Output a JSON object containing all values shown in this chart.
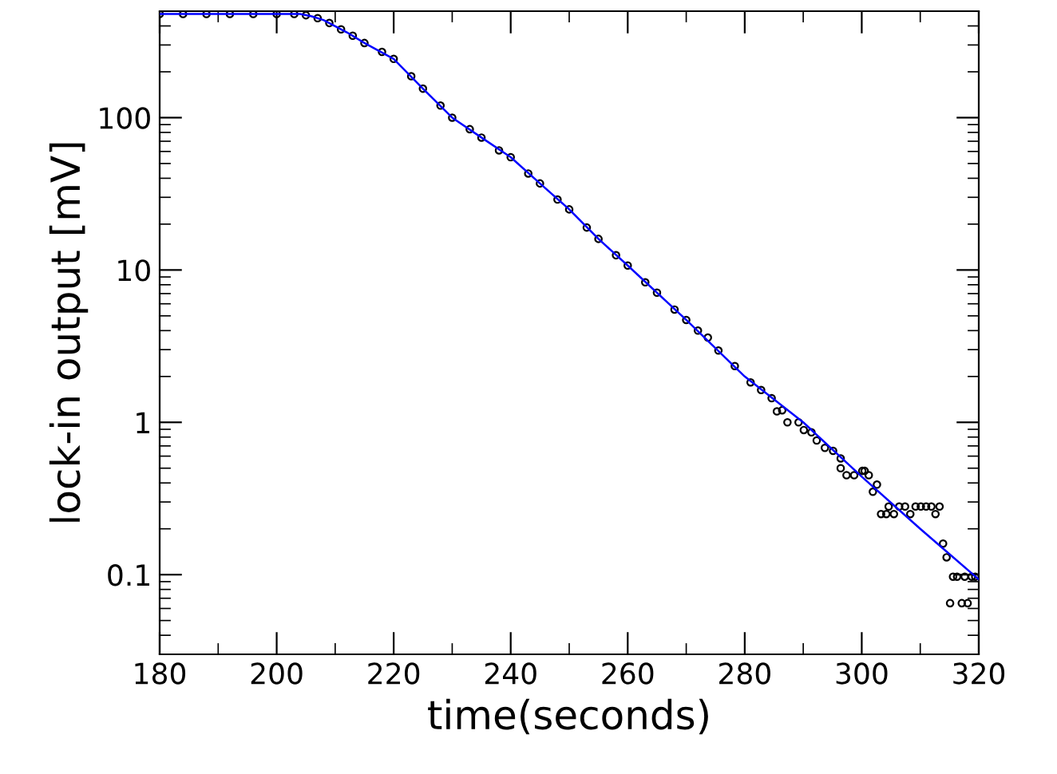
{
  "chart_data": {
    "type": "scatter",
    "xlabel": "time(seconds)",
    "ylabel": "lock-in output [mV]",
    "log": "y",
    "xlim": [
      180,
      320
    ],
    "xticks": [
      180,
      200,
      220,
      240,
      260,
      280,
      300,
      320
    ],
    "ylim": [
      0.03,
      500
    ],
    "yticks": [
      0.1,
      1,
      10,
      100
    ],
    "grid": false,
    "legend": false,
    "series": [
      {
        "marker": "circle",
        "color": "#000000",
        "x": [
          180,
          184,
          188,
          192,
          196,
          200,
          203,
          205,
          207,
          209,
          211,
          213,
          215,
          218,
          220,
          223,
          225,
          228,
          230,
          233,
          235,
          238,
          240,
          243,
          245,
          248,
          250,
          253,
          255,
          258,
          260,
          263,
          265,
          268,
          270,
          272,
          273.7,
          275.5,
          278.3,
          281,
          282.8,
          284.6,
          285.5,
          286.4,
          287.3,
          289.2,
          290.1,
          291.4,
          292.3,
          293.7,
          295.1,
          296.4,
          296.4,
          297.4,
          298.7,
          300.1,
          300.5,
          301.2,
          301.9,
          302.6,
          303.3,
          304.2,
          304.6,
          305.5,
          306.4,
          307.4,
          308.3,
          309.2,
          310.1,
          311.0,
          311.9,
          312.6,
          313.3,
          313.9,
          314.5,
          315.1,
          315.6,
          316.3,
          317.1,
          317.6,
          318.1,
          318.8,
          319.4
        ],
        "values": [
          479,
          479,
          479,
          479,
          479,
          479,
          479,
          470,
          450,
          418,
          380,
          345,
          309,
          270,
          243,
          187,
          155,
          120,
          100,
          84,
          74,
          61,
          55,
          43,
          37,
          29,
          25,
          19,
          16,
          12.5,
          10.7,
          8.3,
          7.1,
          5.5,
          4.7,
          4.0,
          3.6,
          2.96,
          2.34,
          1.83,
          1.63,
          1.44,
          1.18,
          1.2,
          1.0,
          1.0,
          0.89,
          0.86,
          0.76,
          0.68,
          0.65,
          0.58,
          0.5,
          0.45,
          0.45,
          0.48,
          0.48,
          0.45,
          0.35,
          0.39,
          0.25,
          0.25,
          0.28,
          0.25,
          0.28,
          0.28,
          0.25,
          0.28,
          0.28,
          0.28,
          0.28,
          0.25,
          0.28,
          0.16,
          0.13,
          0.065,
          0.097,
          0.097,
          0.065,
          0.097,
          0.065,
          0.097,
          0.097
        ]
      },
      {
        "type": "line",
        "line_style": "solid",
        "color": "#0000ff",
        "x": [
          180,
          204,
          206,
          208,
          210,
          212,
          215,
          220,
          225,
          230,
          235,
          240,
          245,
          250,
          255,
          260,
          270,
          280,
          290,
          300,
          310,
          320
        ],
        "values": [
          479,
          479,
          462,
          437,
          398,
          363,
          309,
          243,
          155,
          100,
          74,
          55,
          37,
          25,
          16,
          10.7,
          4.7,
          2.0,
          1.0,
          0.44,
          0.2,
          0.093
        ]
      }
    ]
  }
}
